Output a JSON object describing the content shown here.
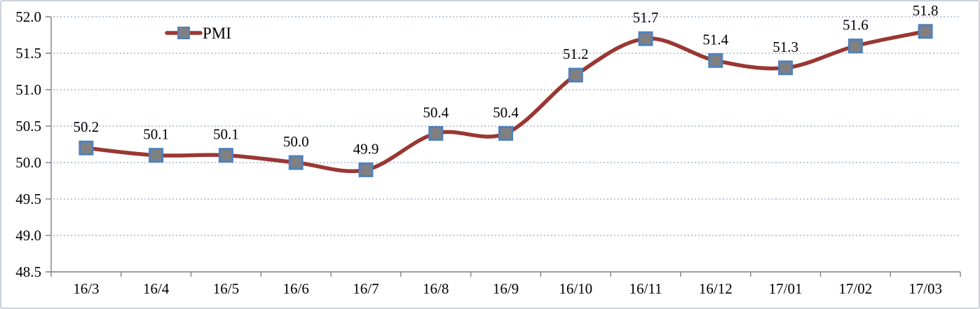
{
  "chart_data": {
    "type": "line",
    "title": "",
    "categories": [
      "16/3",
      "16/4",
      "16/5",
      "16/6",
      "16/7",
      "16/8",
      "16/9",
      "16/10",
      "16/11",
      "16/12",
      "17/01",
      "17/02",
      "17/03"
    ],
    "series": [
      {
        "name": "PMI",
        "values": [
          50.2,
          50.1,
          50.1,
          50.0,
          49.9,
          50.4,
          50.4,
          51.2,
          51.7,
          51.4,
          51.3,
          51.6,
          51.8
        ]
      }
    ],
    "data_labels": [
      "50.2",
      "50.1",
      "50.1",
      "50.0",
      "49.9",
      "50.4",
      "50.4",
      "51.2",
      "51.7",
      "51.4",
      "51.3",
      "51.6",
      "51.8"
    ],
    "xlabel": "",
    "ylabel": "",
    "ylim": [
      48.5,
      52.0
    ],
    "ytick_step": 0.5,
    "ytick_labels": [
      "52.0",
      "51.5",
      "51.0",
      "50.5",
      "50.0",
      "49.5",
      "49.0",
      "48.5"
    ],
    "grid": "horizontal-dotted",
    "line_style": "smooth",
    "marker": "square",
    "legend": {
      "label": "PMI",
      "position": "inside-top-left"
    },
    "colors": {
      "line": "#9a3733",
      "marker_fill": "#808080",
      "marker_border": "#4f81bd",
      "gridline": "#bdc7de",
      "axis": "#7f7f7f",
      "text": "#000000",
      "frame_border": "#ccd2da",
      "background": "#ffffff"
    }
  }
}
